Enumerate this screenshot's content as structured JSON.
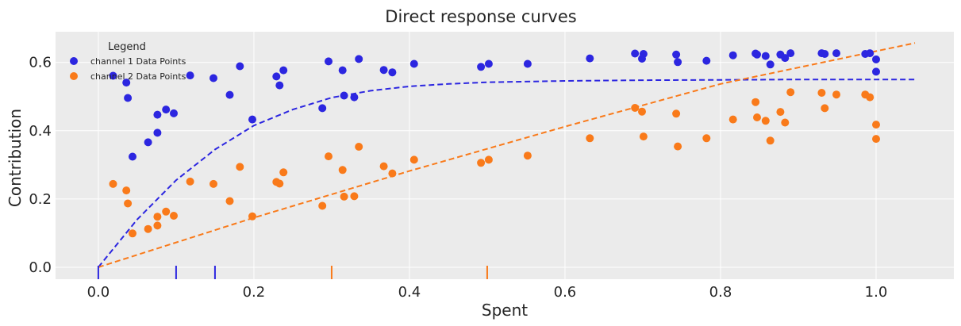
{
  "chart_data": {
    "type": "scatter",
    "title": "Direct response curves",
    "xlabel": "Spent",
    "ylabel": "Contribution",
    "xlim": [
      -0.055,
      1.1
    ],
    "ylim": [
      -0.035,
      0.69
    ],
    "xticks": [
      0.0,
      0.2,
      0.4,
      0.6,
      0.8,
      1.0
    ],
    "xtick_labels": [
      "0.0",
      "0.2",
      "0.4",
      "0.6",
      "0.8",
      "1.0"
    ],
    "yticks": [
      0.0,
      0.2,
      0.4,
      0.6
    ],
    "ytick_labels": [
      "0.0",
      "0.2",
      "0.4",
      "0.6"
    ],
    "grid": true,
    "legend": {
      "title": "Legend",
      "placement": "top-left",
      "entries": [
        "channel 1 Data Points",
        "channel 2 Data Points"
      ]
    },
    "colors": {
      "channel1": "#2c26e0",
      "channel2": "#f97a1a",
      "background": "#ebebeb",
      "grid": "#ffffff"
    },
    "series": [
      {
        "name": "channel 1 Data Points",
        "kind": "scatter",
        "color": "#2c26e0",
        "points": [
          [
            0.019,
            0.561
          ],
          [
            0.036,
            0.541
          ],
          [
            0.038,
            0.496
          ],
          [
            0.044,
            0.324
          ],
          [
            0.064,
            0.366
          ],
          [
            0.076,
            0.394
          ],
          [
            0.076,
            0.447
          ],
          [
            0.087,
            0.462
          ],
          [
            0.097,
            0.451
          ],
          [
            0.118,
            0.562
          ],
          [
            0.148,
            0.554
          ],
          [
            0.169,
            0.505
          ],
          [
            0.182,
            0.589
          ],
          [
            0.198,
            0.433
          ],
          [
            0.229,
            0.559
          ],
          [
            0.233,
            0.533
          ],
          [
            0.238,
            0.577
          ],
          [
            0.288,
            0.466
          ],
          [
            0.296,
            0.603
          ],
          [
            0.314,
            0.577
          ],
          [
            0.316,
            0.503
          ],
          [
            0.329,
            0.498
          ],
          [
            0.335,
            0.61
          ],
          [
            0.367,
            0.578
          ],
          [
            0.378,
            0.571
          ],
          [
            0.406,
            0.596
          ],
          [
            0.492,
            0.587
          ],
          [
            0.502,
            0.596
          ],
          [
            0.552,
            0.596
          ],
          [
            0.632,
            0.612
          ],
          [
            0.69,
            0.626
          ],
          [
            0.699,
            0.611
          ],
          [
            0.701,
            0.625
          ],
          [
            0.743,
            0.623
          ],
          [
            0.745,
            0.601
          ],
          [
            0.782,
            0.605
          ],
          [
            0.816,
            0.621
          ],
          [
            0.845,
            0.626
          ],
          [
            0.847,
            0.623
          ],
          [
            0.858,
            0.619
          ],
          [
            0.864,
            0.594
          ],
          [
            0.877,
            0.623
          ],
          [
            0.883,
            0.613
          ],
          [
            0.89,
            0.627
          ],
          [
            0.93,
            0.627
          ],
          [
            0.934,
            0.625
          ],
          [
            0.949,
            0.627
          ],
          [
            0.986,
            0.625
          ],
          [
            0.992,
            0.627
          ],
          [
            1.0,
            0.609
          ],
          [
            1.0,
            0.573
          ]
        ]
      },
      {
        "name": "channel 2 Data Points",
        "kind": "scatter",
        "color": "#f97a1a",
        "points": [
          [
            0.019,
            0.244
          ],
          [
            0.036,
            0.225
          ],
          [
            0.038,
            0.187
          ],
          [
            0.044,
            0.099
          ],
          [
            0.064,
            0.112
          ],
          [
            0.076,
            0.122
          ],
          [
            0.076,
            0.148
          ],
          [
            0.087,
            0.163
          ],
          [
            0.097,
            0.151
          ],
          [
            0.118,
            0.251
          ],
          [
            0.148,
            0.244
          ],
          [
            0.169,
            0.194
          ],
          [
            0.182,
            0.294
          ],
          [
            0.198,
            0.149
          ],
          [
            0.229,
            0.25
          ],
          [
            0.233,
            0.245
          ],
          [
            0.238,
            0.278
          ],
          [
            0.288,
            0.18
          ],
          [
            0.296,
            0.325
          ],
          [
            0.314,
            0.285
          ],
          [
            0.316,
            0.207
          ],
          [
            0.329,
            0.208
          ],
          [
            0.335,
            0.353
          ],
          [
            0.367,
            0.296
          ],
          [
            0.378,
            0.275
          ],
          [
            0.406,
            0.315
          ],
          [
            0.492,
            0.306
          ],
          [
            0.502,
            0.315
          ],
          [
            0.552,
            0.327
          ],
          [
            0.632,
            0.378
          ],
          [
            0.69,
            0.467
          ],
          [
            0.699,
            0.456
          ],
          [
            0.701,
            0.383
          ],
          [
            0.743,
            0.45
          ],
          [
            0.745,
            0.354
          ],
          [
            0.782,
            0.378
          ],
          [
            0.816,
            0.433
          ],
          [
            0.845,
            0.484
          ],
          [
            0.847,
            0.439
          ],
          [
            0.858,
            0.429
          ],
          [
            0.864,
            0.371
          ],
          [
            0.877,
            0.455
          ],
          [
            0.883,
            0.424
          ],
          [
            0.89,
            0.513
          ],
          [
            0.93,
            0.511
          ],
          [
            0.934,
            0.466
          ],
          [
            0.949,
            0.506
          ],
          [
            0.986,
            0.506
          ],
          [
            0.992,
            0.498
          ],
          [
            1.0,
            0.418
          ],
          [
            1.0,
            0.376
          ]
        ]
      },
      {
        "kind": "line",
        "dash": true,
        "color": "#2c26e0",
        "points": [
          [
            0.0,
            0.0
          ],
          [
            0.05,
            0.14
          ],
          [
            0.1,
            0.255
          ],
          [
            0.15,
            0.345
          ],
          [
            0.2,
            0.415
          ],
          [
            0.25,
            0.462
          ],
          [
            0.3,
            0.497
          ],
          [
            0.35,
            0.517
          ],
          [
            0.4,
            0.53
          ],
          [
            0.45,
            0.537
          ],
          [
            0.5,
            0.542
          ],
          [
            0.6,
            0.546
          ],
          [
            0.7,
            0.548
          ],
          [
            0.8,
            0.549
          ],
          [
            0.9,
            0.55
          ],
          [
            1.05,
            0.55
          ]
        ]
      },
      {
        "kind": "line",
        "dash": true,
        "color": "#f97a1a",
        "points": [
          [
            0.0,
            0.0
          ],
          [
            0.2,
            0.145
          ],
          [
            0.4,
            0.282
          ],
          [
            0.6,
            0.412
          ],
          [
            0.8,
            0.537
          ],
          [
            1.05,
            0.657
          ]
        ]
      }
    ],
    "rug": [
      {
        "color": "#2c26e0",
        "x": [
          0.0,
          0.1,
          0.15
        ]
      },
      {
        "color": "#f97a1a",
        "x": [
          0.3,
          0.5
        ]
      }
    ]
  }
}
